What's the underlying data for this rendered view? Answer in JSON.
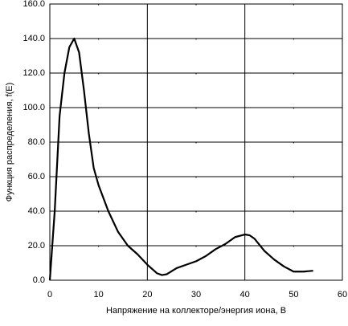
{
  "chart_data": {
    "type": "line",
    "x_label": "Напряжение на коллекторе/энергия иона, В",
    "y_label": "Функция распределения, f(E)",
    "x": [
      0,
      1,
      2,
      3,
      4,
      5,
      6,
      7,
      8,
      9,
      10,
      12,
      14,
      16,
      18,
      20,
      22,
      23,
      24,
      26,
      28,
      30,
      32,
      34,
      36,
      38,
      40,
      41,
      42,
      44,
      46,
      48,
      50,
      52,
      54
    ],
    "series": [
      {
        "name": "f(E)",
        "color": "#000000",
        "values": [
          0,
          40,
          95,
          120,
          135,
          140,
          132,
          110,
          85,
          65,
          55,
          40,
          28,
          20,
          15,
          9,
          4,
          3,
          3.5,
          7,
          9,
          11,
          14,
          18,
          21,
          25,
          26.5,
          26,
          24,
          17,
          12,
          8,
          5,
          5,
          5.5
        ]
      }
    ],
    "xlim": [
      0,
      60
    ],
    "xticks": [
      0,
      10,
      20,
      30,
      40,
      50,
      60
    ],
    "ylim": [
      0,
      160
    ],
    "yticks": [
      {
        "value": 0,
        "label": "0.0"
      },
      {
        "value": 20,
        "label": "20.0"
      },
      {
        "value": 40,
        "label": "40.0"
      },
      {
        "value": 60,
        "label": "60.0"
      },
      {
        "value": 80,
        "label": "80.0"
      },
      {
        "value": 100,
        "label": "100.0"
      },
      {
        "value": 120,
        "label": "120.0"
      },
      {
        "value": 140,
        "label": "140.0"
      },
      {
        "value": 160,
        "label": "160.0"
      }
    ],
    "grid": true
  }
}
